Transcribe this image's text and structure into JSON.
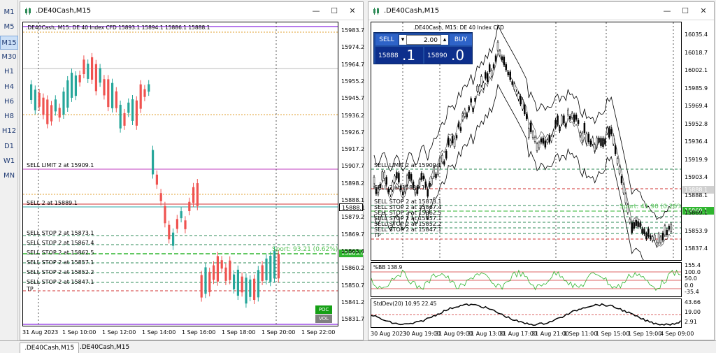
{
  "timeframes": [
    "M1",
    "M5",
    "M15",
    "M30",
    "H1",
    "H4",
    "H6",
    "H8",
    "H12",
    "D1",
    "W1",
    "MN"
  ],
  "active_timeframe": "M15",
  "left_window": {
    "title": ".DE40Cash,M15",
    "header": ".DE40Cash, M15: DE 40 Index CFD  15893.1 15894.1 15886.1 15888.1",
    "price_labels": [
      "15983.7",
      "15974.2",
      "15964.7",
      "15955.2",
      "15945.7",
      "15936.2",
      "15926.7",
      "15917.2",
      "15907.7",
      "15898.2",
      "15888.1",
      "15879.2",
      "15869.7",
      "15863.4",
      "15860.2",
      "15850.7",
      "15841.2",
      "15831.7"
    ],
    "time_labels": [
      "31 Aug 2023",
      "1 Sep 10:00",
      "1 Sep 12:00",
      "1 Sep 14:00",
      "1 Sep 16:00",
      "1 Sep 18:00",
      "1 Sep 20:00",
      "1 Sep 22:00"
    ],
    "order_lines": [
      {
        "label": "SELL LIMIT 2 at 15909.1",
        "color": "#c040c0"
      },
      {
        "label": "SELL 2 at 15889.1",
        "color": "#d03030"
      },
      {
        "label": "SELL STOP 2 at 15873.1",
        "color": "#2e8b57"
      },
      {
        "label": "SELL STOP 2 at 15867.4",
        "color": "#2e8b57"
      },
      {
        "label": "SELL STOP 2 at 15862.5",
        "color": "#2e8b57"
      },
      {
        "label": "SELL STOP 2 at 15857.1",
        "color": "#2e8b57"
      },
      {
        "label": "SELL STOP 2 at 15852.2",
        "color": "#2e8b57"
      },
      {
        "label": "SELL STOP 2 at 15847.1",
        "color": "#2e8b57"
      },
      {
        "label": "TP",
        "color": "#d03030"
      }
    ],
    "sport_label": "Sport: 93.21  (0.62%)",
    "current_price": "15888.1",
    "green_price": "15863.4",
    "poc_label": "POC",
    "vol_label": "VOL"
  },
  "right_window": {
    "title": ".DE40Cash,M15",
    "header": ".DE40Cash, M15: DE 40 Index CFD",
    "trade_panel": {
      "sell_label": "SELL",
      "buy_label": "BUY",
      "volume": "2.00",
      "sell_price_big": "15888",
      "sell_price_small": ".1",
      "buy_price_big": "15890",
      "buy_price_small": ".0"
    },
    "price_labels": [
      "16035.4",
      "16018.7",
      "16002.1",
      "15985.9",
      "15969.4",
      "15952.8",
      "15936.4",
      "15919.9",
      "15903.4",
      "15888.1",
      "15869.1",
      "15853.9",
      "15837.4"
    ],
    "bb_title": "%BB 138.9",
    "bb_labels": [
      "155.4",
      "100.0",
      "50.0",
      "0.0",
      "-35.4"
    ],
    "sd_title": "StdDev(20) 10.95 22.45",
    "sd_labels": [
      "43.66",
      "19.00",
      "2.91"
    ],
    "time_labels": [
      "30 Aug 2023",
      "30 Aug 19:00",
      "31 Aug 09:00",
      "31 Aug 13:00",
      "31 Aug 17:00",
      "31 Aug 21:00",
      "1 Sep 11:00",
      "1 Sep 15:00",
      "1 Sep 19:00",
      "4 Sep 09:00"
    ],
    "order_lines": [
      {
        "label": "SELL LIMIT 2 at 15909.1"
      },
      {
        "label": "SELL 2 at 15889.1"
      },
      {
        "label": "SELL STOP 2 at 15873.1"
      },
      {
        "label": "SELL STOP 2 at 15867.4"
      },
      {
        "label": "SELL STOP 2 at 15862.5"
      },
      {
        "label": "SELL STOP 2 at 15857.1"
      },
      {
        "label": "SELL STOP 2 at 15852.2"
      },
      {
        "label": "SELL STOP 2 at 15847.1"
      },
      {
        "label": "TP"
      }
    ],
    "sport_label": "Sport: 41.90  (0.26%)",
    "green_price": "15869.1"
  },
  "bottom_tabs": [
    ".DE40Cash,M15",
    ".DE40Cash,M15"
  ],
  "colors": {
    "bull": "#26a69a",
    "bear": "#ef5350",
    "accent": "#1e4ba0"
  }
}
